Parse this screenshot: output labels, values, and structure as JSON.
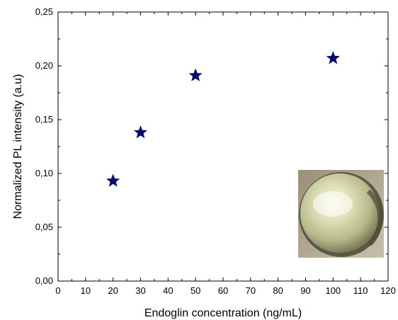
{
  "chart_data": {
    "type": "scatter",
    "title": "",
    "xlabel": "Endoglin concentration (ng/mL)",
    "ylabel": "Normalized PL intensity (a.u)",
    "xlim": [
      0,
      120
    ],
    "ylim": [
      0,
      0.25
    ],
    "x_ticks": [
      "0",
      "10",
      "20",
      "30",
      "40",
      "50",
      "60",
      "70",
      "80",
      "90",
      "100",
      "110",
      "120"
    ],
    "y_ticks": [
      "0,00",
      "0,05",
      "0,10",
      "0,15",
      "0,20",
      "0,25"
    ],
    "grid": false,
    "marker": "star",
    "marker_color": "#0a0a6e",
    "series": [
      {
        "x": [
          20,
          30,
          50,
          100
        ],
        "y": [
          0.093,
          0.138,
          0.191,
          0.207
        ]
      }
    ],
    "inset": "photo of droplet (yellow-green sphere)"
  }
}
